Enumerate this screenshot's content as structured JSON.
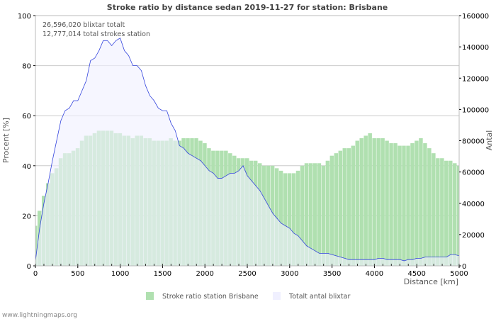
{
  "chart_data": {
    "type": "bar",
    "title": "Stroke ratio by distance sedan 2019-11-27 for station: Brisbane",
    "xlabel": "Distance   [km]",
    "ylabel": "Procent   [%]",
    "y2label": "Antal",
    "xlim": [
      0,
      5000
    ],
    "ylim": [
      0,
      100
    ],
    "y2lim": [
      0,
      160000
    ],
    "xticks": [
      "0",
      "500",
      "1000",
      "1500",
      "2000",
      "2500",
      "3000",
      "3500",
      "4000",
      "4500",
      "5000"
    ],
    "yticks": [
      "0",
      "20",
      "40",
      "60",
      "80",
      "100"
    ],
    "y2ticks": [
      "0",
      "20000",
      "40000",
      "60000",
      "80000",
      "100000",
      "120000",
      "140000",
      "160000"
    ],
    "grid": true,
    "legend_position": "bottom",
    "annotations": [
      "26,596,020 blixtar totalt",
      "12,777,014 total strokes station"
    ],
    "x": [
      0,
      50,
      100,
      150,
      200,
      250,
      300,
      350,
      400,
      450,
      500,
      550,
      600,
      650,
      700,
      750,
      800,
      850,
      900,
      950,
      1000,
      1050,
      1100,
      1150,
      1200,
      1250,
      1300,
      1350,
      1400,
      1450,
      1500,
      1550,
      1600,
      1650,
      1700,
      1750,
      1800,
      1850,
      1900,
      1950,
      2000,
      2050,
      2100,
      2150,
      2200,
      2250,
      2300,
      2350,
      2400,
      2450,
      2500,
      2550,
      2600,
      2650,
      2700,
      2750,
      2800,
      2850,
      2900,
      2950,
      3000,
      3050,
      3100,
      3150,
      3200,
      3250,
      3300,
      3350,
      3400,
      3450,
      3500,
      3550,
      3600,
      3650,
      3700,
      3750,
      3800,
      3850,
      3900,
      3950,
      4000,
      4050,
      4100,
      4150,
      4200,
      4250,
      4300,
      4350,
      4400,
      4450,
      4500,
      4550,
      4600,
      4650,
      4700,
      4750,
      4800,
      4850,
      4900,
      4950,
      5000
    ],
    "series": [
      {
        "name": "Stroke ratio station Brisbane",
        "axis": "left",
        "color": "#b0e0b0",
        "values": [
          16,
          22,
          28,
          33,
          37,
          39,
          43,
          45,
          45,
          46,
          47,
          50,
          52,
          52,
          53,
          54,
          54,
          54,
          54,
          53,
          53,
          52,
          52,
          51,
          52,
          52,
          51,
          51,
          50,
          50,
          50,
          50,
          51,
          50,
          50,
          51,
          51,
          51,
          51,
          50,
          49,
          47,
          46,
          46,
          46,
          46,
          45,
          44,
          43,
          43,
          43,
          42,
          42,
          41,
          40,
          40,
          40,
          39,
          38,
          37,
          37,
          37,
          38,
          40,
          41,
          41,
          41,
          41,
          40,
          42,
          44,
          45,
          46,
          47,
          47,
          48,
          50,
          51,
          52,
          53,
          51,
          51,
          51,
          50,
          49,
          49,
          48,
          48,
          48,
          49,
          50,
          51,
          49,
          47,
          45,
          43,
          43,
          42,
          42,
          41,
          40
        ]
      },
      {
        "name": "Totalt antal blixtar",
        "axis": "right",
        "color": "#f0f0ff",
        "line_color": "#3344dd",
        "values": [
          3200,
          24000,
          40000,
          52800,
          67200,
          80000,
          92800,
          99200,
          100800,
          105600,
          105600,
          112000,
          118400,
          131200,
          132800,
          137600,
          144000,
          144000,
          140800,
          144000,
          145600,
          137600,
          134400,
          128000,
          128000,
          124800,
          115200,
          108800,
          105600,
          100800,
          99200,
          99200,
          91200,
          86400,
          76800,
          75200,
          72000,
          70400,
          68800,
          67200,
          64000,
          60800,
          59200,
          56000,
          56000,
          57600,
          59200,
          59200,
          60800,
          64000,
          57600,
          54400,
          51200,
          48000,
          43200,
          38400,
          33600,
          30400,
          27200,
          25600,
          24000,
          20800,
          19200,
          16000,
          12800,
          11200,
          9600,
          8000,
          8000,
          8000,
          7200,
          6400,
          5600,
          4800,
          4000,
          4000,
          4000,
          4000,
          4000,
          4000,
          4000,
          4800,
          4800,
          4000,
          4000,
          4000,
          4000,
          3200,
          4000,
          4000,
          4800,
          4800,
          5600,
          5600,
          5600,
          5600,
          5600,
          5600,
          7200,
          7200,
          6400
        ]
      }
    ]
  },
  "footer": "www.lightningmaps.org"
}
